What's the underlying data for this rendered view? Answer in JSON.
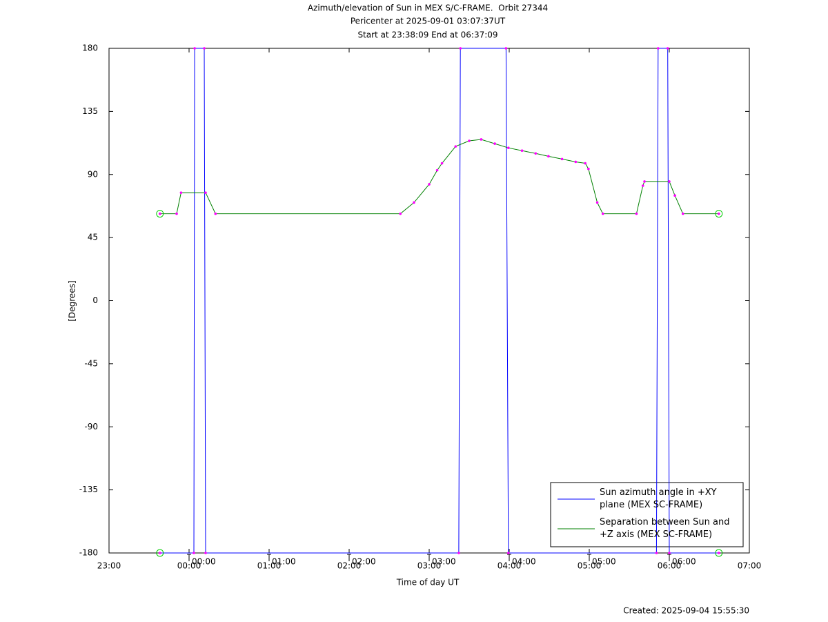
{
  "chart_data": {
    "type": "line",
    "title": "Azimuth/elevation of Sun in MEX S/C-FRAME.  Orbit 27344",
    "subtitle": [
      "Pericenter at 2025-09-01 03:07:37UT",
      "Start at 23:38:09 End at 06:37:09"
    ],
    "x_label": "Time of day UT",
    "y_label": "[Degrees]",
    "footer": "Created: 2025-09-04 15:55:30",
    "xlim": [
      -1,
      7
    ],
    "xticks": [
      {
        "value": -1,
        "label": "23:00"
      },
      {
        "value": 0,
        "label": "00:00"
      },
      {
        "value": 1,
        "label": "01:00"
      },
      {
        "value": 2,
        "label": "02:00"
      },
      {
        "value": 3,
        "label": "03:00"
      },
      {
        "value": 4,
        "label": "04:00"
      },
      {
        "value": 5,
        "label": "05:00"
      },
      {
        "value": 6,
        "label": "06:00"
      },
      {
        "value": 7,
        "label": "07:00"
      }
    ],
    "time_marks": [
      {
        "value": 0,
        "label": "00:00"
      },
      {
        "value": 1,
        "label": "01:00"
      },
      {
        "value": 2,
        "label": "02:00"
      },
      {
        "value": 3,
        "label": "03:00"
      },
      {
        "value": 4,
        "label": "04:00"
      },
      {
        "value": 5,
        "label": "05:00"
      },
      {
        "value": 6,
        "label": "06:00"
      }
    ],
    "ylim": [
      -180,
      180
    ],
    "yticks": [
      180,
      135,
      90,
      45,
      0,
      -45,
      -90,
      -135,
      -180
    ],
    "legend": "lower right",
    "marker_color": "#ff00ff",
    "series": [
      {
        "name": "Sun azimuth angle in +XY plane (MEX SC-FRAME)",
        "color": "#0000ff",
        "x": [
          -0.364,
          0.06,
          0.07,
          0.19,
          0.207,
          3.37,
          3.39,
          3.96,
          3.99,
          5.84,
          5.86,
          5.98,
          6.0,
          6.619
        ],
        "values": [
          -180,
          -180,
          180,
          180,
          -180,
          -180,
          180,
          180,
          -180,
          -180,
          180,
          180,
          -180,
          -180
        ]
      },
      {
        "name": "Separation between Sun and +Z axis (MEX SC-FRAME)",
        "color": "#008000",
        "x": [
          -0.364,
          -0.155,
          -0.1,
          0.207,
          0.33,
          2.64,
          2.81,
          3.0,
          3.1,
          3.16,
          3.33,
          3.5,
          3.65,
          3.82,
          3.99,
          4.16,
          4.33,
          4.49,
          4.66,
          4.83,
          4.95,
          4.99,
          5.1,
          5.17,
          5.59,
          5.67,
          5.69,
          6.0,
          6.07,
          6.17,
          6.619
        ],
        "values": [
          62,
          62,
          77,
          77,
          62,
          62,
          70,
          83,
          93,
          98,
          110,
          114,
          115,
          112,
          109,
          107,
          105,
          103,
          101,
          99,
          98,
          94,
          70,
          62,
          62,
          82,
          85,
          85,
          75,
          62,
          62
        ]
      }
    ]
  }
}
